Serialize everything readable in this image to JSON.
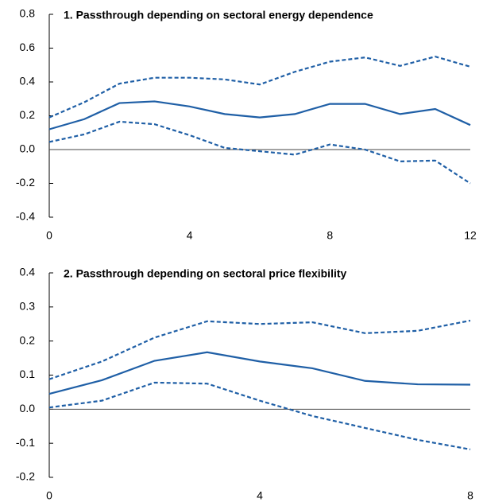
{
  "chart_data": [
    {
      "type": "line",
      "title": "1. Passthrough depending on sectoral energy dependence",
      "x": [
        0,
        1,
        2,
        3,
        4,
        5,
        6,
        7,
        8,
        9,
        10,
        11,
        12
      ],
      "xlim": [
        0,
        12
      ],
      "xticks": [
        0,
        4,
        8,
        12
      ],
      "ylim": [
        -0.4,
        0.8
      ],
      "yticks": [
        -0.4,
        -0.2,
        {
          "value": 0,
          "label": "0.0"
        },
        0.2,
        0.4,
        0.6,
        0.8
      ],
      "zero_line": true,
      "series": [
        {
          "color": "#1f5fa6",
          "dashed": false,
          "values": [
            0.12,
            0.18,
            0.275,
            0.285,
            0.255,
            0.21,
            0.19,
            0.21,
            0.27,
            0.27,
            0.21,
            0.24,
            0.145
          ]
        },
        {
          "color": "#1f5fa6",
          "dashed": true,
          "values": [
            0.19,
            0.28,
            0.39,
            0.425,
            0.425,
            0.415,
            0.385,
            0.46,
            0.52,
            0.545,
            0.495,
            0.55,
            0.49
          ]
        },
        {
          "color": "#1f5fa6",
          "dashed": true,
          "values": [
            0.045,
            0.09,
            0.165,
            0.15,
            0.085,
            0.01,
            -0.01,
            -0.03,
            0.03,
            0.0,
            -0.07,
            -0.065,
            -0.2
          ]
        }
      ]
    },
    {
      "type": "line",
      "title": "2. Passthrough depending on sectoral price flexibility",
      "x": [
        0,
        1,
        2,
        3,
        4,
        5,
        6,
        7,
        8
      ],
      "xlim": [
        0,
        8
      ],
      "xticks": [
        0,
        4,
        8
      ],
      "ylim": [
        -0.2,
        0.4
      ],
      "yticks": [
        -0.2,
        -0.1,
        {
          "value": 0,
          "label": "0.0"
        },
        0.1,
        0.2,
        0.3,
        0.4
      ],
      "zero_line": true,
      "series": [
        {
          "color": "#1f5fa6",
          "dashed": false,
          "values": [
            0.045,
            0.085,
            0.142,
            0.167,
            0.14,
            0.12,
            0.083,
            0.073,
            0.072
          ]
        },
        {
          "color": "#1f5fa6",
          "dashed": true,
          "values": [
            0.088,
            0.14,
            0.21,
            0.258,
            0.25,
            0.255,
            0.223,
            0.23,
            0.26
          ]
        },
        {
          "color": "#1f5fa6",
          "dashed": true,
          "values": [
            0.005,
            0.025,
            0.078,
            0.075,
            0.025,
            -0.02,
            -0.055,
            -0.09,
            -0.118
          ]
        }
      ]
    }
  ]
}
